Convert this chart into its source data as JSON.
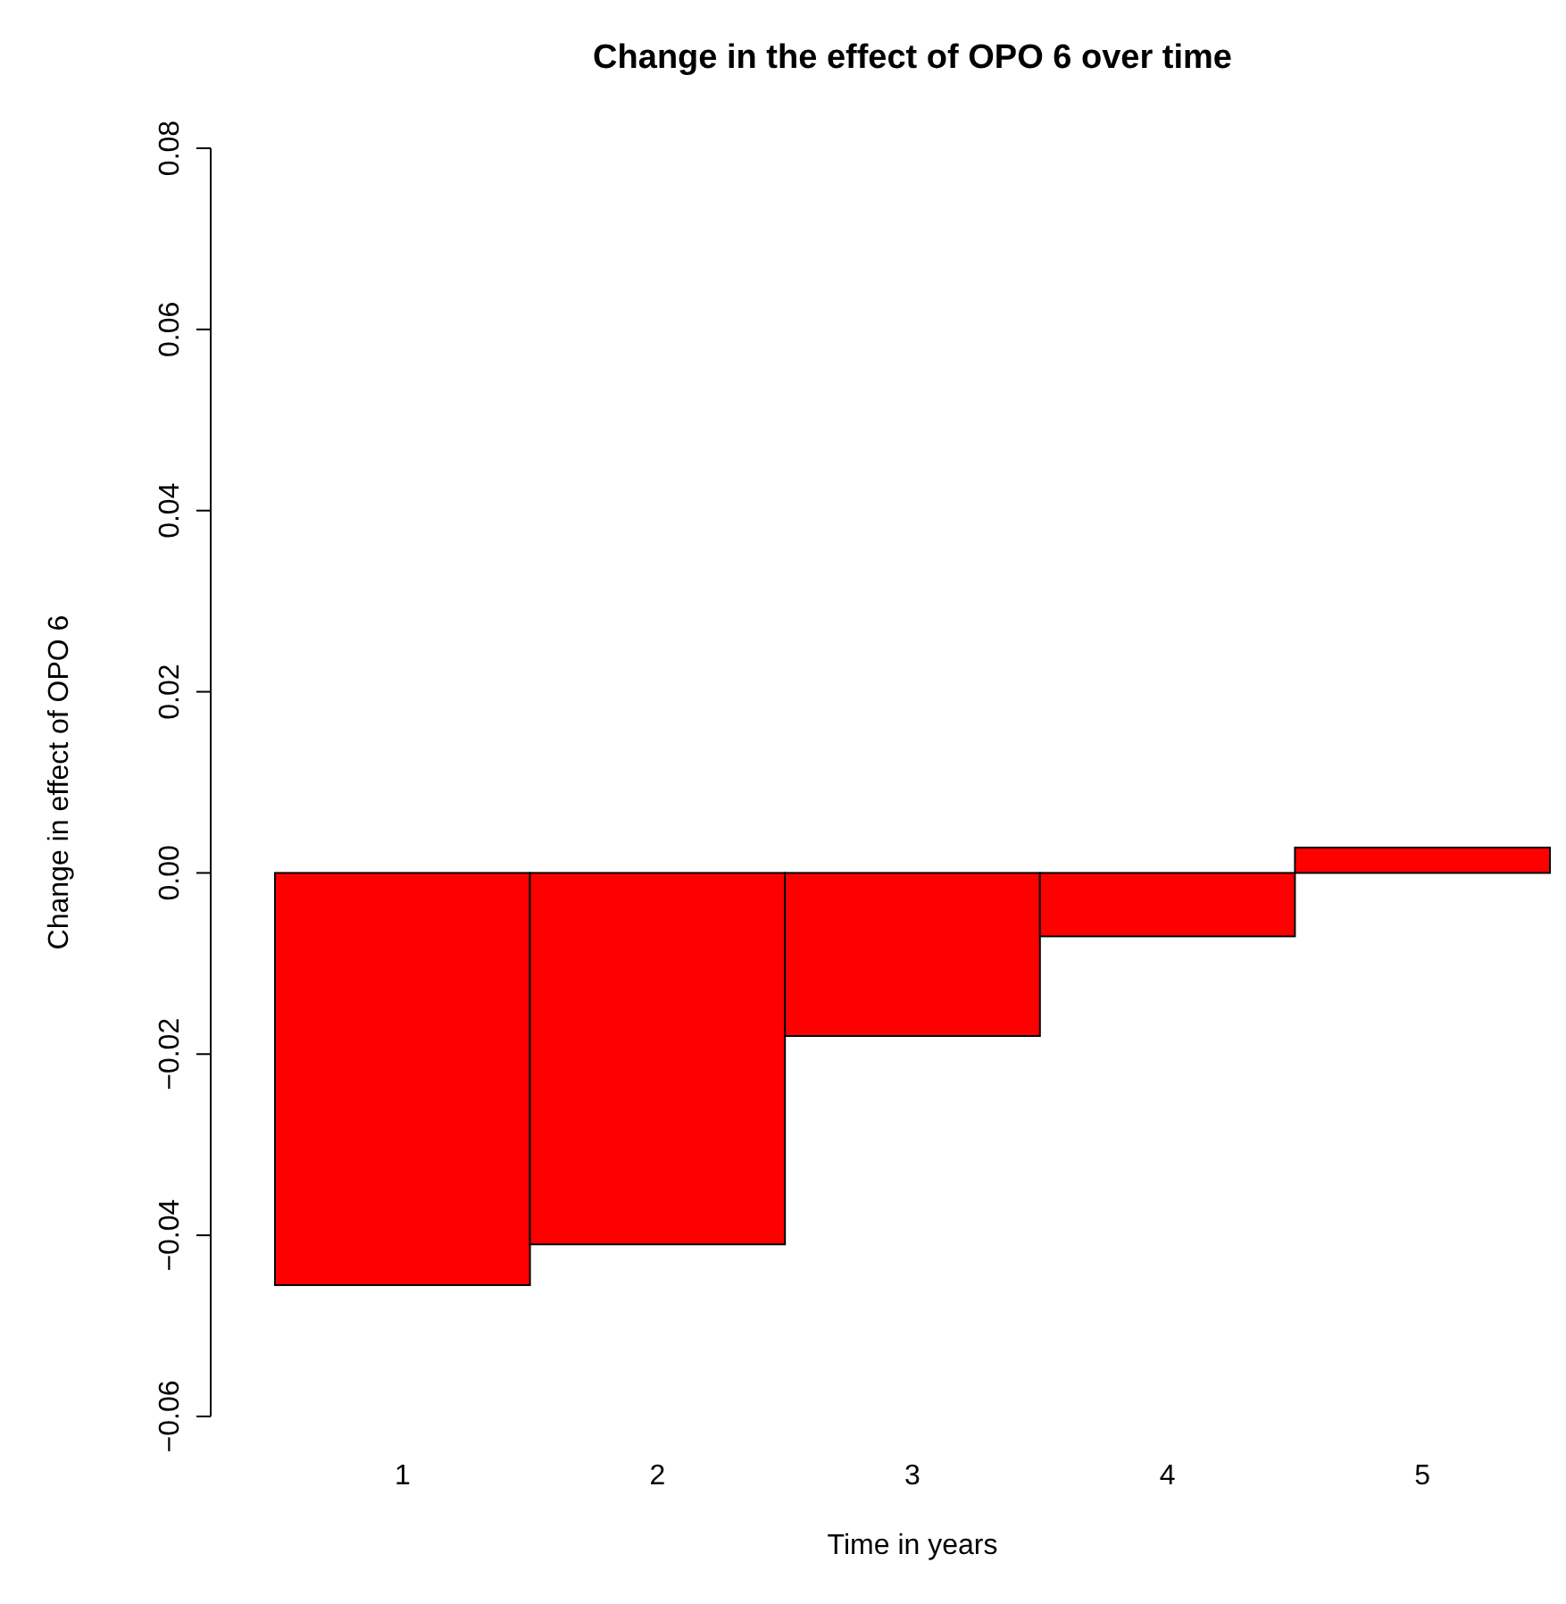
{
  "chart_data": {
    "type": "bar",
    "title": "Change in the effect of OPO 6 over time",
    "xlabel": "Time in years",
    "ylabel": "Change in effect of OPO 6",
    "categories": [
      "1",
      "2",
      "3",
      "4",
      "5"
    ],
    "values": [
      -0.0455,
      -0.041,
      -0.018,
      -0.007,
      0.0028
    ],
    "color": "#ff0000",
    "ylim": [
      -0.06,
      0.08
    ],
    "yticks": [
      {
        "value": -0.06,
        "label": "−0.06"
      },
      {
        "value": -0.04,
        "label": "−0.04"
      },
      {
        "value": -0.02,
        "label": "−0.02"
      },
      {
        "value": 0,
        "label": "0.00"
      },
      {
        "value": 0.02,
        "label": "0.02"
      },
      {
        "value": 0.04,
        "label": "0.04"
      },
      {
        "value": 0.06,
        "label": "0.06"
      },
      {
        "value": 0.08,
        "label": "0.08"
      }
    ],
    "grid": false
  }
}
